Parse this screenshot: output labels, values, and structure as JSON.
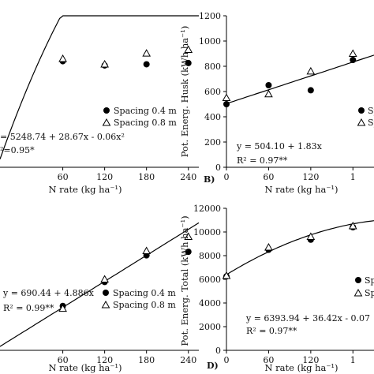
{
  "chart_data": [
    {
      "type": "scatter",
      "panel": "",
      "xlabel": "N rate (kg ha⁻¹)",
      "ylabel": "",
      "x": [
        0,
        60,
        120,
        180,
        240
      ],
      "xticks": [
        "60",
        "120",
        "180",
        "240"
      ],
      "yticks": [],
      "ylim": [
        4200,
        6700
      ],
      "xlim": [
        -30,
        255
      ],
      "series": [
        {
          "name": "Spacing 0.4 m",
          "marker": "circle",
          "values": [
            null,
            5950,
            5880,
            5900,
            5920
          ]
        },
        {
          "name": "Spacing 0.8 m",
          "marker": "triangle",
          "values": [
            null,
            5990,
            5900,
            6080,
            6140
          ]
        }
      ],
      "equation": "= 5248.74 + 28.67x - 0.06x²",
      "r2": "²=0.95*",
      "fit": {
        "kind": "quadratic",
        "coef": [
          5248.74,
          28.67,
          -0.06
        ]
      },
      "legend_position": "right"
    },
    {
      "type": "scatter",
      "panel": "B)",
      "xlabel": "N rate (kg ha⁻¹)",
      "ylabel": "Pot. Energ. Husk (kWh ha⁻¹)",
      "x": [
        0,
        60,
        120,
        180
      ],
      "xticks": [
        "0",
        "60",
        "120",
        "1"
      ],
      "yticks": [
        "0",
        "200",
        "400",
        "600",
        "800",
        "1000",
        "1200"
      ],
      "ylim": [
        0,
        1200
      ],
      "xlim": [
        0,
        210
      ],
      "series": [
        {
          "name": "Sp",
          "marker": "circle",
          "values": [
            500,
            650,
            610,
            850
          ]
        },
        {
          "name": "Sp",
          "marker": "triangle",
          "values": [
            550,
            580,
            760,
            900
          ]
        }
      ],
      "equation": "y = 504.10 + 1.83x",
      "r2": "R² = 0.97**",
      "fit": {
        "kind": "linear",
        "coef": [
          504.1,
          1.83
        ]
      },
      "legend_position": "right"
    },
    {
      "type": "scatter",
      "panel": "",
      "xlabel": "N rate (kg ha⁻¹)",
      "ylabel": "",
      "x": [
        0,
        60,
        120,
        180,
        240
      ],
      "xticks": [
        "60",
        "120",
        "180",
        "240"
      ],
      "yticks": [],
      "ylim": [
        500,
        2100
      ],
      "xlim": [
        -30,
        255
      ],
      "series": [
        {
          "name": "Spacing 0.4 m",
          "marker": "circle",
          "values": [
            null,
            1000,
            1270,
            1570,
            1610
          ]
        },
        {
          "name": "Spacing 0.8 m",
          "marker": "triangle",
          "values": [
            null,
            970,
            1300,
            1620,
            1780
          ]
        }
      ],
      "equation": "y = 690.44 + 4.886x",
      "r2": "R² = 0.99**",
      "fit": {
        "kind": "linear",
        "coef": [
          690.44,
          4.886
        ]
      },
      "legend_position": "right"
    },
    {
      "type": "scatter",
      "panel": "D)",
      "xlabel": "N rate (kg ha⁻¹)",
      "ylabel": "Pot. Energ. Total (kWh ha⁻¹)",
      "x": [
        0,
        60,
        120,
        180
      ],
      "xticks": [
        "0",
        "60",
        "120",
        "1"
      ],
      "yticks": [
        "0",
        "2000",
        "4000",
        "6000",
        "8000",
        "10000",
        "12000"
      ],
      "ylim": [
        0,
        12000
      ],
      "xlim": [
        0,
        210
      ],
      "series": [
        {
          "name": "Sp",
          "marker": "circle",
          "values": [
            6250,
            8500,
            9350,
            10400
          ]
        },
        {
          "name": "Sp",
          "marker": "triangle",
          "values": [
            6300,
            8700,
            9600,
            10500
          ]
        }
      ],
      "equation": "y = 6393.94 + 36.42x - 0.07",
      "r2": "R² = 0.97**",
      "fit": {
        "kind": "quadratic",
        "coef": [
          6393.94,
          36.42,
          -0.07
        ]
      },
      "legend_position": "right"
    }
  ]
}
